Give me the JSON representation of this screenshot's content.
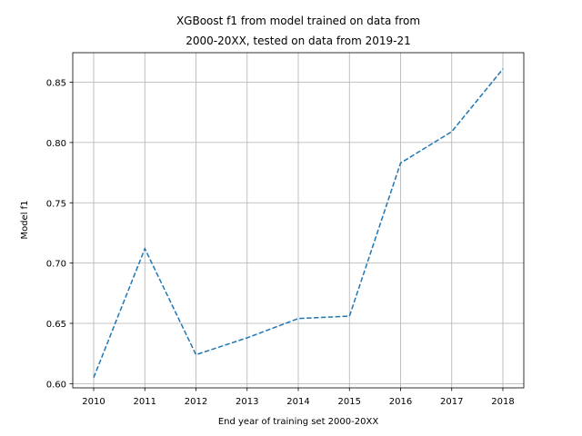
{
  "chart_data": {
    "type": "line",
    "title_lines": [
      "XGBoost f1 from model trained on data from",
      "2000-20XX, tested on data from 2019-21"
    ],
    "xlabel": "End year of training set 2000-20XX",
    "ylabel": "Model f1",
    "categories": [
      "2010",
      "2011",
      "2012",
      "2013",
      "2014",
      "2015",
      "2016",
      "2017",
      "2018"
    ],
    "series": [
      {
        "values": [
          0.605,
          0.712,
          0.624,
          0.638,
          0.654,
          0.656,
          0.783,
          0.809,
          0.861
        ],
        "color": "#1f77b4",
        "line_style": "dashed"
      }
    ],
    "yticks": [
      "0.60",
      "0.65",
      "0.70",
      "0.75",
      "0.80",
      "0.85"
    ],
    "ylim": [
      0.5965,
      0.8745
    ],
    "grid": true,
    "legend": "none"
  }
}
